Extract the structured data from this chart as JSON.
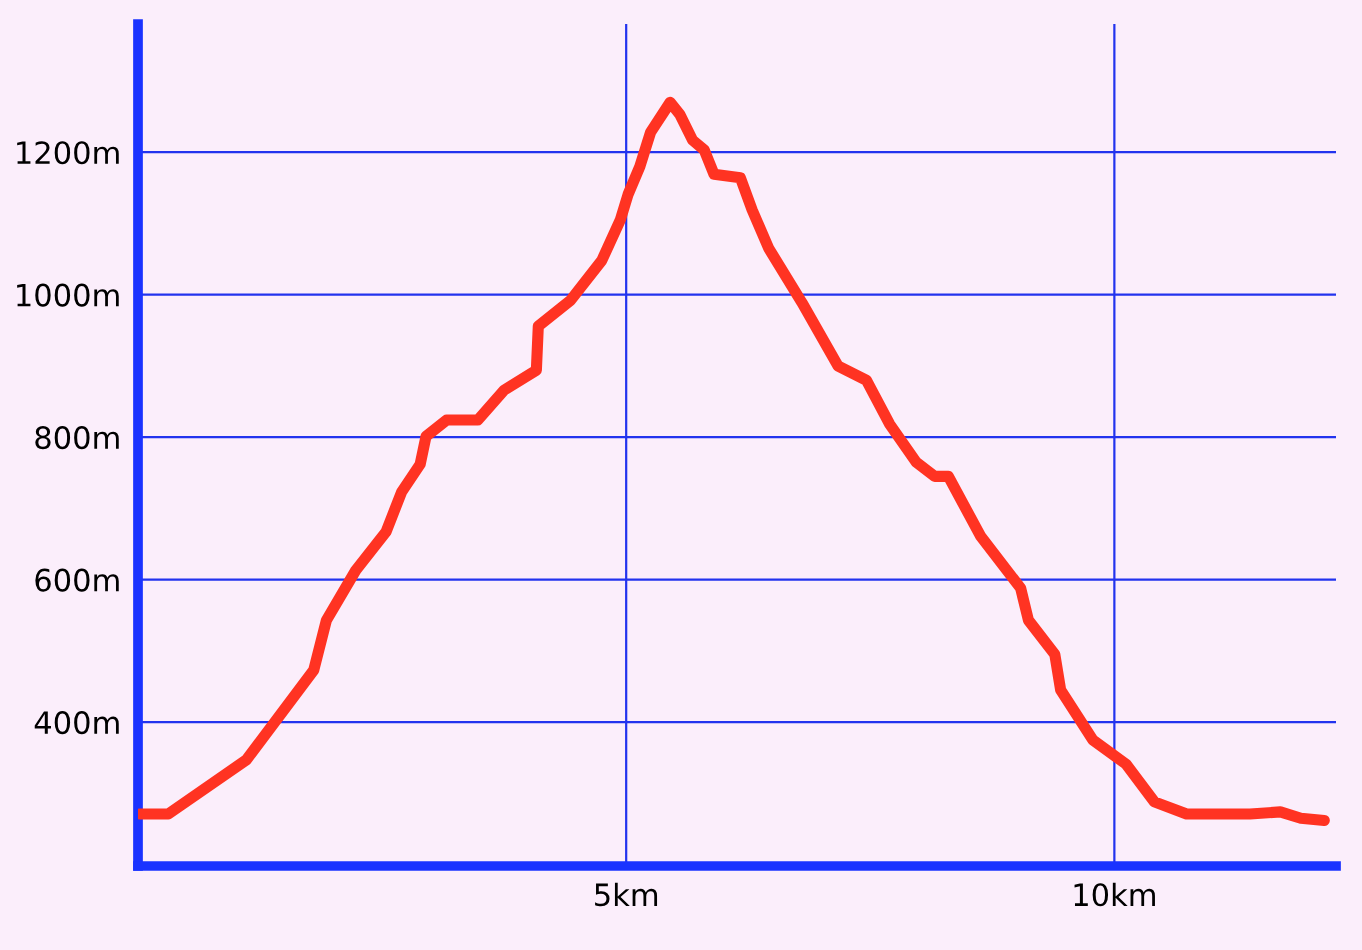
{
  "chart_data": {
    "type": "line",
    "x": [
      0.02,
      0.31,
      1.11,
      1.8,
      1.93,
      2.23,
      2.54,
      2.7,
      2.89,
      2.95,
      3.16,
      3.48,
      3.75,
      4.08,
      4.1,
      4.43,
      4.75,
      4.94,
      5.02,
      5.14,
      5.25,
      5.45,
      5.55,
      5.68,
      5.8,
      5.9,
      6.17,
      6.29,
      6.46,
      6.8,
      7.17,
      7.46,
      7.7,
      7.97,
      8.16,
      8.3,
      8.63,
      9.04,
      9.12,
      9.39,
      9.45,
      9.78,
      10.12,
      10.41,
      10.74,
      11.39,
      11.7,
      11.91,
      12.15
    ],
    "series": [
      {
        "color": "#ff3322",
        "values": [
          271,
          271,
          347,
          473,
          543,
          613,
          667,
          723,
          762,
          801,
          824,
          824,
          866,
          894,
          956,
          992,
          1048,
          1105,
          1141,
          1180,
          1228,
          1270,
          1253,
          1217,
          1203,
          1169,
          1164,
          1119,
          1065,
          989,
          900,
          880,
          818,
          765,
          745,
          745,
          661,
          588,
          543,
          495,
          445,
          375,
          341,
          288,
          271,
          271,
          274,
          265,
          262
        ]
      }
    ],
    "xlim": [
      0,
      12.27
    ],
    "ylim": [
      198,
      1380
    ],
    "xticks": [
      {
        "value": 5,
        "label": "5km"
      },
      {
        "value": 10,
        "label": "10km"
      }
    ],
    "yticks": [
      {
        "value": 400,
        "label": "400m"
      },
      {
        "value": 600,
        "label": "600m"
      },
      {
        "value": 800,
        "label": "800m"
      },
      {
        "value": 1000,
        "label": "1000m"
      },
      {
        "value": 1200,
        "label": "1200m"
      }
    ],
    "grid": true,
    "marker": "none",
    "line_style": "solid"
  }
}
